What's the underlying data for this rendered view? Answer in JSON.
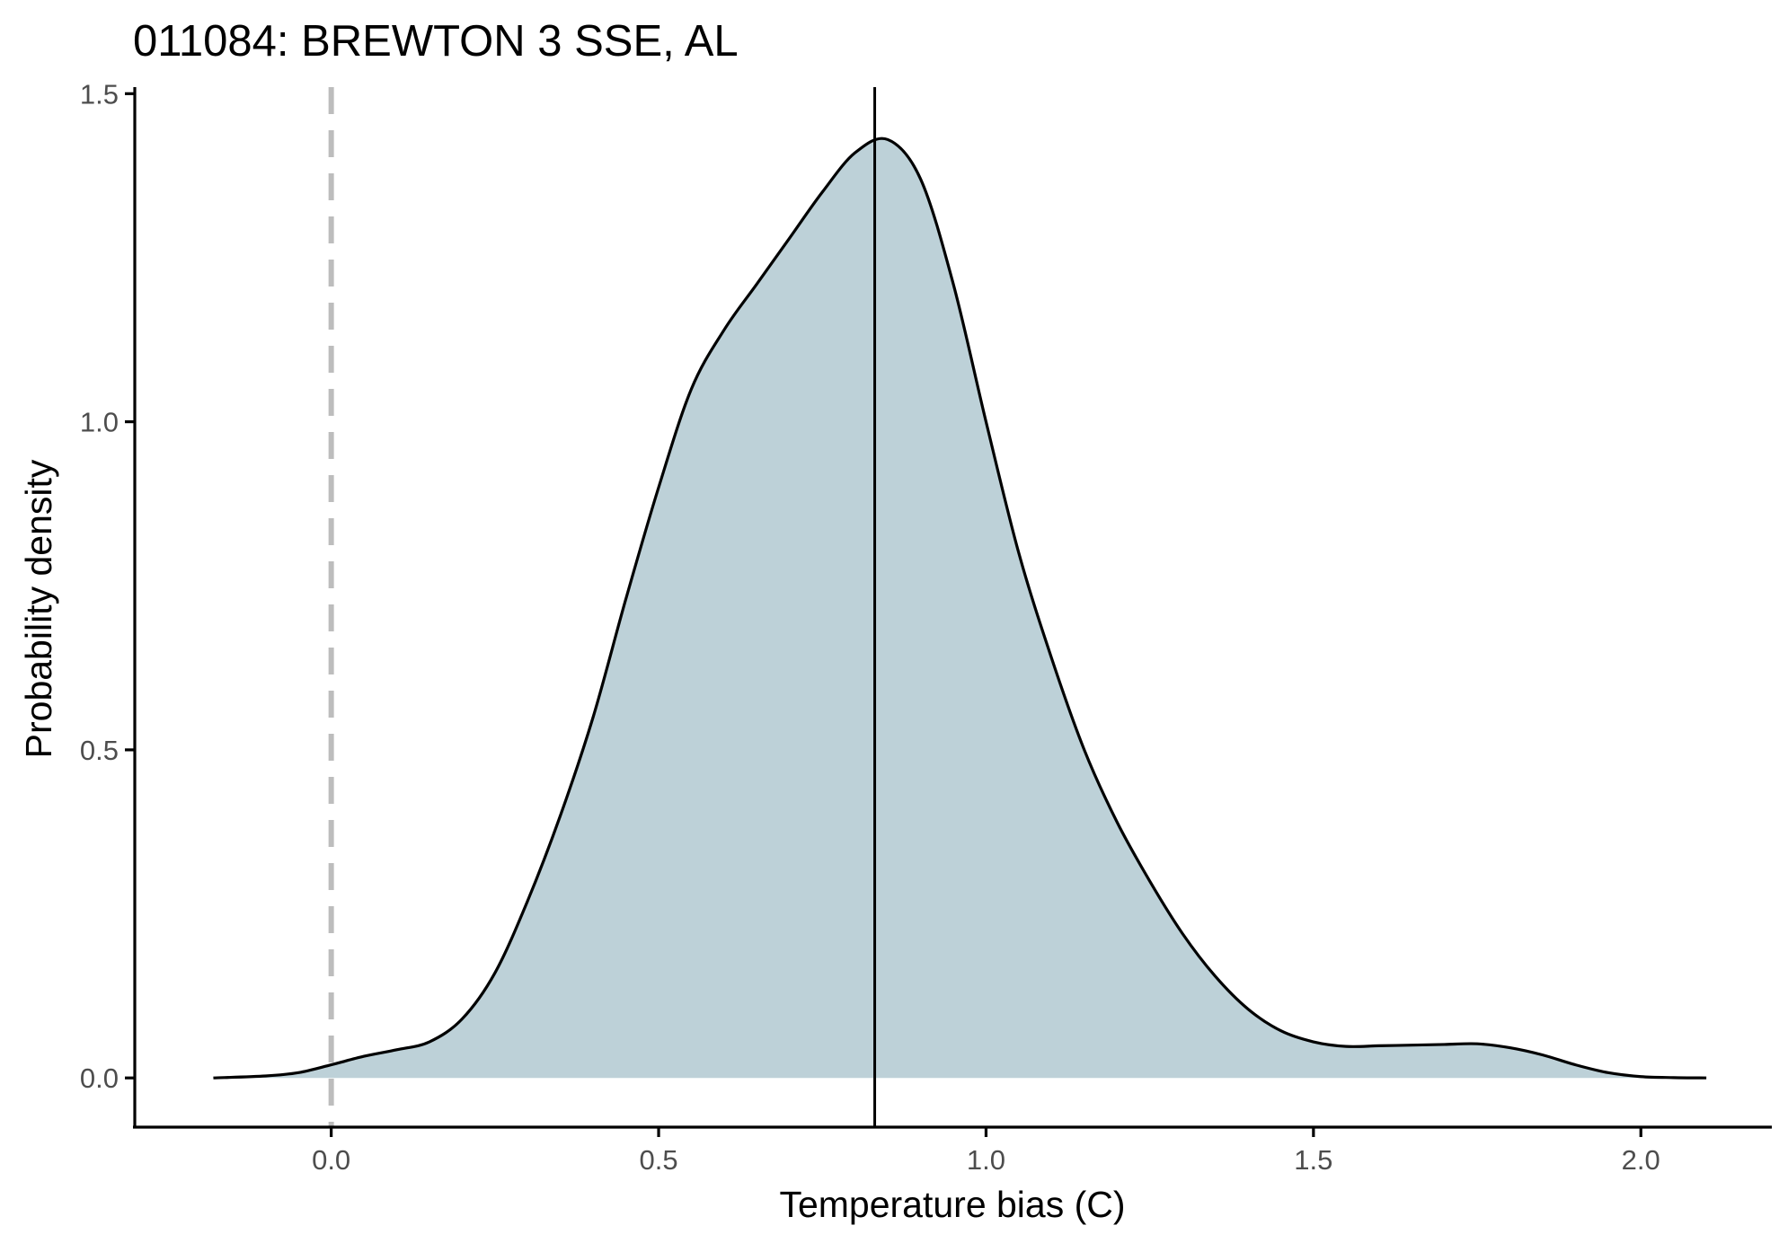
{
  "chart_data": {
    "type": "area",
    "title": "011084: BREWTON 3 SSE, AL",
    "xlabel": "Temperature bias (C)",
    "ylabel": "Probability density",
    "xlim": [
      -0.3,
      2.2
    ],
    "ylim": [
      -0.075,
      1.51
    ],
    "x_ticks": [
      0.0,
      0.5,
      1.0,
      1.5,
      2.0
    ],
    "x_tick_labels": [
      "0.0",
      "0.5",
      "1.0",
      "1.5",
      "2.0"
    ],
    "y_ticks": [
      0.0,
      0.5,
      1.0,
      1.5
    ],
    "y_tick_labels": [
      "0.0",
      "0.5",
      "1.0",
      "1.5"
    ],
    "grid": false,
    "legend": "none",
    "fill_color": "#bdd1d8",
    "line_color": "#000000",
    "reference_lines": [
      {
        "x": 0.0,
        "style": "dashed",
        "color": "#bdbdbd"
      },
      {
        "x": 0.83,
        "style": "solid",
        "color": "#000000"
      }
    ],
    "series": [
      {
        "x": [
          -0.18,
          -0.1,
          -0.05,
          0.0,
          0.05,
          0.1,
          0.15,
          0.2,
          0.25,
          0.3,
          0.35,
          0.4,
          0.45,
          0.5,
          0.55,
          0.6,
          0.65,
          0.7,
          0.75,
          0.8,
          0.85,
          0.9,
          0.95,
          1.0,
          1.05,
          1.1,
          1.15,
          1.2,
          1.25,
          1.3,
          1.35,
          1.4,
          1.45,
          1.5,
          1.55,
          1.6,
          1.65,
          1.7,
          1.75,
          1.8,
          1.85,
          1.9,
          1.95,
          2.0,
          2.05,
          2.1
        ],
        "y": [
          0.0,
          0.003,
          0.008,
          0.02,
          0.033,
          0.043,
          0.055,
          0.09,
          0.16,
          0.27,
          0.4,
          0.55,
          0.73,
          0.9,
          1.05,
          1.14,
          1.21,
          1.28,
          1.35,
          1.41,
          1.43,
          1.37,
          1.21,
          1.0,
          0.8,
          0.64,
          0.5,
          0.39,
          0.3,
          0.22,
          0.155,
          0.105,
          0.072,
          0.055,
          0.048,
          0.049,
          0.05,
          0.051,
          0.052,
          0.046,
          0.035,
          0.02,
          0.008,
          0.002,
          0.0005,
          0.0
        ]
      }
    ]
  }
}
